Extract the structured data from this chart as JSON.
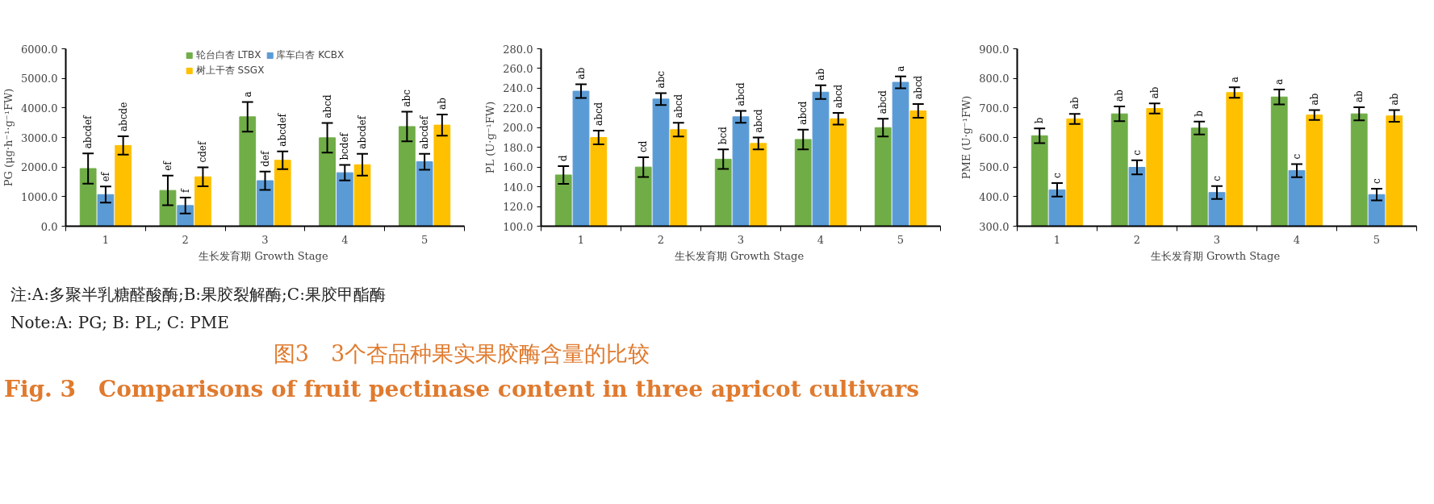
{
  "chart_data": [
    {
      "type": "bar",
      "categories": [
        "1",
        "2",
        "3",
        "4",
        "5"
      ],
      "xlabel": "生长发育期  Growth Stage",
      "ylabel": "PG (μg·h⁻¹·g⁻¹FW)",
      "ylim": [
        0,
        6000
      ],
      "yticks": [
        {
          "value": 0,
          "label": "0.0"
        },
        {
          "value": 1000,
          "label": "1000.0"
        },
        {
          "value": 2000,
          "label": "2000.0"
        },
        {
          "value": 3000,
          "label": "3000.0"
        },
        {
          "value": 4000,
          "label": "4000.0"
        },
        {
          "value": 5000,
          "label": "5000.0"
        },
        {
          "value": 6000,
          "label": "6000.0"
        }
      ],
      "legend": "top",
      "grid": false,
      "series": [
        {
          "name": "轮台白杏 LTBX",
          "color": "#70ad47",
          "values": [
            1950,
            1210,
            3700,
            2990,
            3370
          ],
          "errors": [
            510,
            500,
            500,
            500,
            500
          ],
          "value_labels": [
            "abcdef",
            "ef",
            "a",
            "abcd",
            "abc"
          ]
        },
        {
          "name": "库车白杏 KCBX",
          "color": "#5b9bd5",
          "values": [
            1070,
            700,
            1540,
            1810,
            2180
          ],
          "errors": [
            270,
            270,
            310,
            260,
            270
          ],
          "value_labels": [
            "ef",
            "f",
            "def",
            "bcdef",
            "abcdef"
          ]
        },
        {
          "name": "树上干杏 SSGX",
          "color": "#ffc000",
          "values": [
            2730,
            1670,
            2230,
            2080,
            3420
          ],
          "errors": [
            310,
            320,
            300,
            370,
            360
          ],
          "value_labels": [
            "abcde",
            "cdef",
            "abcdef",
            "abcdef",
            "ab"
          ]
        }
      ],
      "annotations": [
        "注:A:多聚半乳糖醛酸酶;B:果胶裂解酶;C:果胶甲酯酶",
        "Note:A: PG; B: PL; C: PME",
        "图3　3个杏品种果实果胶酶含量的比较",
        "Fig. 3　Comparisons of fruit pectinase content in three apricot cultivars"
      ]
    },
    {
      "type": "bar",
      "categories": [
        "1",
        "2",
        "3",
        "4",
        "5"
      ],
      "xlabel": "生长发育期  Growth Stage",
      "ylabel": "PL (U·g⁻¹FW)",
      "ylim": [
        100,
        280
      ],
      "yticks": [
        {
          "value": 100,
          "label": "100.0"
        },
        {
          "value": 120,
          "label": "120.0"
        },
        {
          "value": 140,
          "label": "140.0"
        },
        {
          "value": 160,
          "label": "160.0"
        },
        {
          "value": 180,
          "label": "180.0"
        },
        {
          "value": 200,
          "label": "200.0"
        },
        {
          "value": 220,
          "label": "220.0"
        },
        {
          "value": 240,
          "label": "240.0"
        },
        {
          "value": 260,
          "label": "260.0"
        },
        {
          "value": 280,
          "label": "280.0"
        }
      ],
      "grid": false,
      "series": [
        {
          "color": "#70ad47",
          "values": [
            152,
            160,
            168,
            188,
            200
          ],
          "errors": [
            9,
            10,
            10,
            10,
            9
          ],
          "value_labels": [
            "d",
            "cd",
            "bcd",
            "abcd",
            "abcd"
          ]
        },
        {
          "color": "#5b9bd5",
          "values": [
            237,
            229,
            211,
            236,
            246
          ],
          "errors": [
            7,
            6,
            6,
            7,
            6
          ],
          "value_labels": [
            "ab",
            "abc",
            "abcd",
            "ab",
            "a"
          ]
        },
        {
          "color": "#ffc000",
          "values": [
            190,
            198,
            184,
            209,
            217
          ],
          "errors": [
            7,
            7,
            6,
            6,
            7
          ],
          "value_labels": [
            "abcd",
            "abcd",
            "abcd",
            "abcd",
            "abcd"
          ]
        }
      ]
    },
    {
      "type": "bar",
      "categories": [
        "1",
        "2",
        "3",
        "4",
        "5"
      ],
      "xlabel": "生长发育期  Growth Stage",
      "ylabel": "PME (U·g⁻¹FW)",
      "ylim": [
        300,
        900
      ],
      "yticks": [
        {
          "value": 300,
          "label": "300.0"
        },
        {
          "value": 400,
          "label": "400.0"
        },
        {
          "value": 500,
          "label": "500.0"
        },
        {
          "value": 600,
          "label": "600.0"
        },
        {
          "value": 700,
          "label": "700.0"
        },
        {
          "value": 800,
          "label": "800.0"
        },
        {
          "value": 900,
          "label": "900.0"
        }
      ],
      "grid": false,
      "series": [
        {
          "color": "#70ad47",
          "values": [
            606,
            680,
            632,
            737,
            680
          ],
          "errors": [
            25,
            25,
            22,
            25,
            22
          ],
          "value_labels": [
            "b",
            "ab",
            "b",
            "a",
            "ab"
          ]
        },
        {
          "color": "#5b9bd5",
          "values": [
            423,
            499,
            414,
            488,
            407
          ],
          "errors": [
            23,
            24,
            22,
            22,
            20
          ],
          "value_labels": [
            "c",
            "c",
            "c",
            "c",
            "c"
          ]
        },
        {
          "color": "#ffc000",
          "values": [
            663,
            698,
            752,
            676,
            673
          ],
          "errors": [
            17,
            17,
            18,
            17,
            20
          ],
          "value_labels": [
            "ab",
            "ab",
            "a",
            "ab",
            "ab"
          ]
        }
      ]
    }
  ]
}
